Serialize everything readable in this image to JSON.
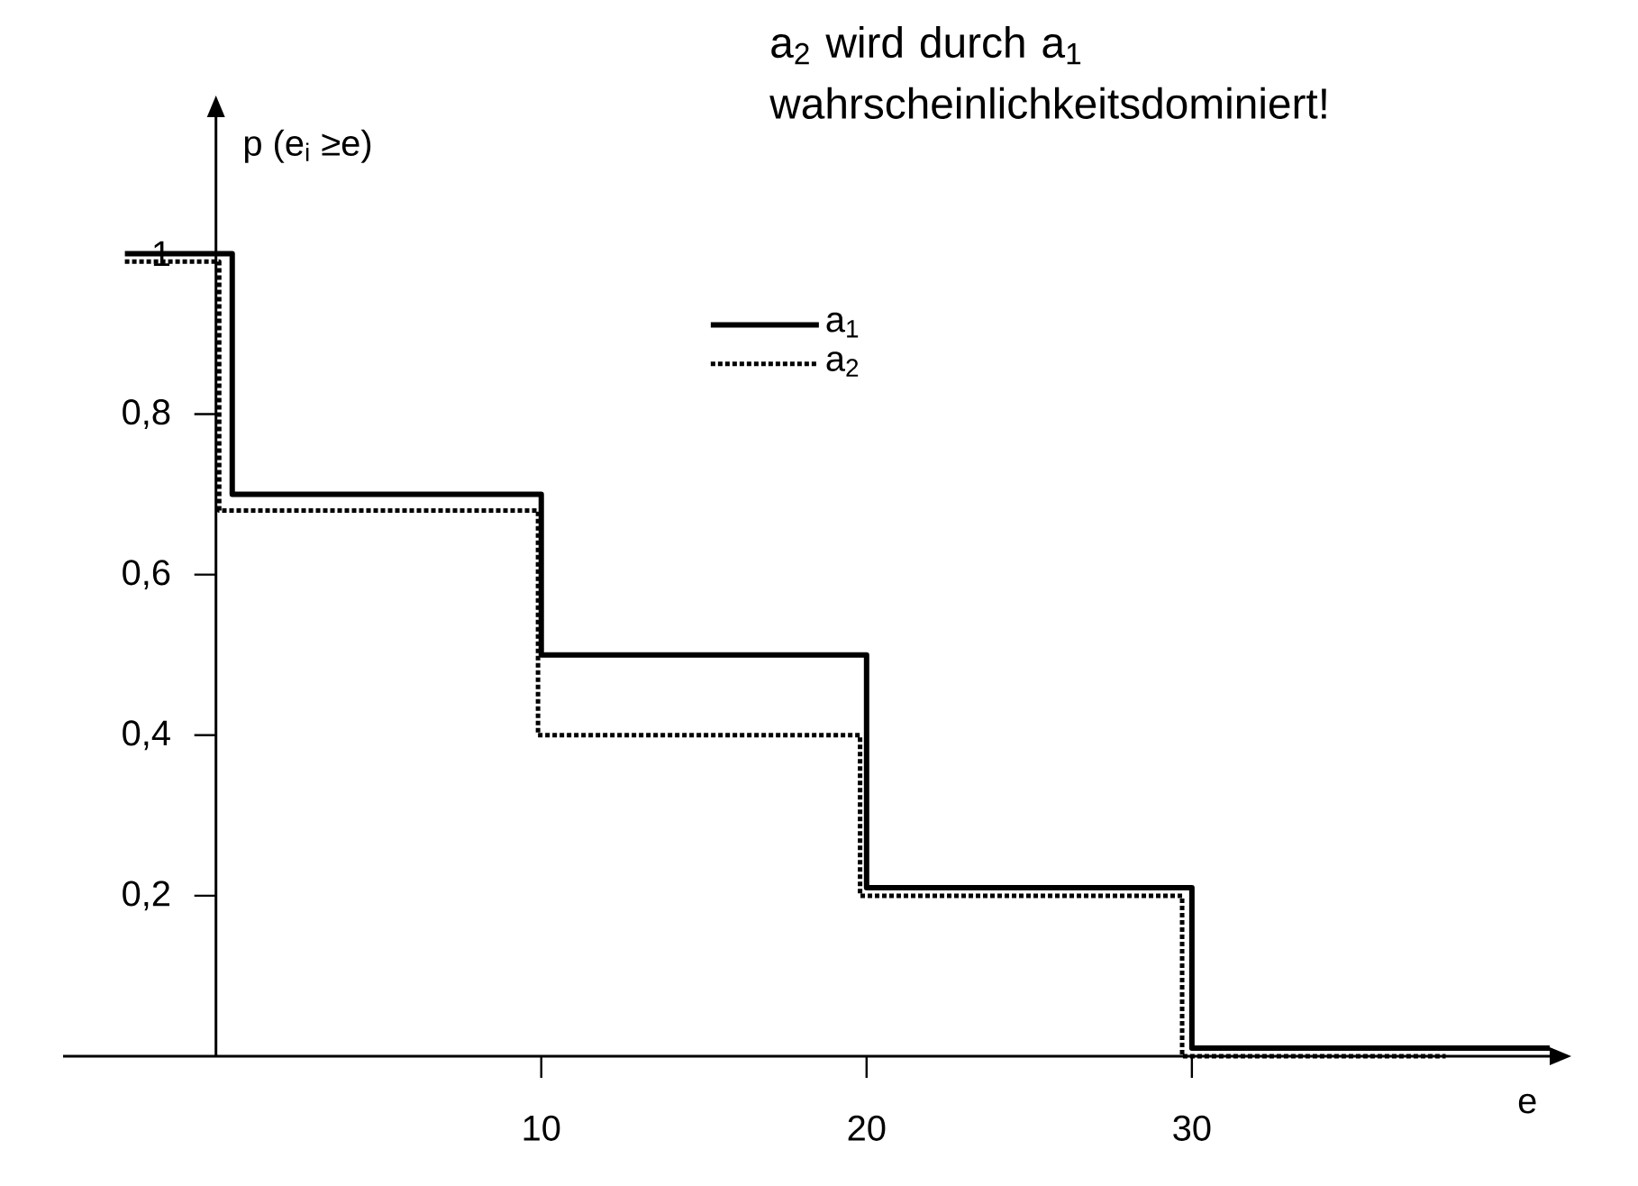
{
  "chart_data": {
    "type": "step",
    "xlabel": "e",
    "ylabel": "p (e$_{i}$ ≥e)",
    "annotations": [
      "a$_{2}$ wird durch a$_{1}$ wahrscheinlichkeitsdominiert!"
    ],
    "xlim": [
      -4.7,
      41
    ],
    "ylim": [
      0,
      1.17
    ],
    "xticks": [
      10,
      20,
      30
    ],
    "yticks": [
      {
        "value": 0.2,
        "label": "0,2"
      },
      {
        "value": 0.4,
        "label": "0,4"
      },
      {
        "value": 0.6,
        "label": "0,6"
      },
      {
        "value": 0.8,
        "label": "0,8"
      },
      1
    ],
    "legend": "top right",
    "series": [
      {
        "name": "a$_{1}$",
        "color": "#000000",
        "line_style": "solid",
        "x": [
          -2.8,
          0.5,
          10,
          20,
          30,
          41
        ],
        "values": [
          1,
          0.7,
          0.5,
          0.21,
          0.01,
          0.01
        ]
      },
      {
        "name": "a$_{2}$",
        "color": "#000000",
        "line_style": "dotted",
        "x": [
          -2.8,
          0.1,
          9.9,
          19.8,
          29.7,
          37.8
        ],
        "values": [
          0.99,
          0.68,
          0.4,
          0.2,
          0,
          0
        ]
      }
    ]
  }
}
